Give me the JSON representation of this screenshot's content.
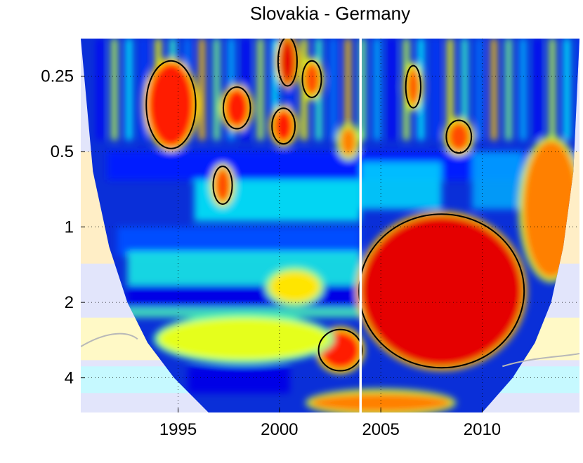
{
  "chart_data": {
    "type": "heatmap",
    "title": "Slovakia - Germany",
    "xlabel": "",
    "ylabel": "",
    "x_ticks": [
      1995,
      2000,
      2005,
      2010
    ],
    "x_tick_labels": [
      "1995",
      "2000",
      "2005",
      "2010"
    ],
    "y_ticks": [
      0.25,
      0.5,
      1,
      2,
      4
    ],
    "y_tick_labels": [
      "0.25",
      "0.5",
      "1",
      "2",
      "4"
    ],
    "y_scale": "log2",
    "y_reversed": true,
    "xlim": [
      1990.2,
      2014.8
    ],
    "ylim": [
      0.177,
      5.5
    ],
    "grid": true,
    "colormap": "jet",
    "event_line_x": 2004.0,
    "cone_of_influence": [
      [
        1990.2,
        0.177
      ],
      [
        1990.8,
        0.6
      ],
      [
        1991.6,
        1.2
      ],
      [
        1992.5,
        2.0
      ],
      [
        1993.5,
        2.9
      ],
      [
        1994.8,
        4.0
      ],
      [
        1996.5,
        5.5
      ],
      [
        2010.0,
        5.5
      ],
      [
        2011.5,
        4.0
      ],
      [
        2012.6,
        2.9
      ],
      [
        2013.4,
        2.0
      ],
      [
        2014.0,
        1.2
      ],
      [
        2014.5,
        0.6
      ],
      [
        2014.8,
        0.177
      ]
    ],
    "high_coherence_regions": [
      {
        "x": [
          2004.0,
          2012.0
        ],
        "y": [
          0.9,
          3.6
        ],
        "level": 0.9
      },
      {
        "x": [
          2002.0,
          2004.0
        ],
        "y": [
          2.6,
          3.7
        ],
        "level": 0.85
      },
      {
        "x": [
          2012.0,
          2014.8
        ],
        "y": [
          0.45,
          1.6
        ],
        "level": 0.75
      },
      {
        "x": [
          1993.5,
          1995.8
        ],
        "y": [
          0.22,
          0.48
        ],
        "level": 0.85
      },
      {
        "x": [
          1997.3,
          1998.5
        ],
        "y": [
          0.28,
          0.4
        ],
        "level": 0.85
      },
      {
        "x": [
          2000.0,
          2000.8
        ],
        "y": [
          0.177,
          0.27
        ],
        "level": 0.9
      },
      {
        "x": [
          1999.7,
          2000.7
        ],
        "y": [
          0.34,
          0.46
        ],
        "level": 0.85
      },
      {
        "x": [
          2001.2,
          2002.0
        ],
        "y": [
          0.22,
          0.3
        ],
        "level": 0.8
      },
      {
        "x": [
          2006.3,
          2006.9
        ],
        "y": [
          0.23,
          0.33
        ],
        "level": 0.8
      },
      {
        "x": [
          1996.8,
          1997.6
        ],
        "y": [
          0.58,
          0.8
        ],
        "level": 0.8
      },
      {
        "x": [
          2003.0,
          2003.8
        ],
        "y": [
          0.4,
          0.52
        ],
        "level": 0.75
      },
      {
        "x": [
          2008.3,
          2009.4
        ],
        "y": [
          0.38,
          0.5
        ],
        "level": 0.8
      },
      {
        "x": [
          2001.5,
          2008.5
        ],
        "y": [
          4.6,
          5.5
        ],
        "level": 0.75
      },
      {
        "x": [
          1994.0,
          2002.5
        ],
        "y": [
          2.3,
          3.4
        ],
        "level": 0.6
      },
      {
        "x": [
          1999.5,
          2002.0
        ],
        "y": [
          1.5,
          2.0
        ],
        "level": 0.65
      }
    ],
    "low_coherence_bands": [
      {
        "x": [
          1992.5,
          2004.0
        ],
        "y": [
          1.7,
          2.1
        ],
        "level": 0.1
      },
      {
        "x": [
          1992.0,
          2004.0
        ],
        "y": [
          1.0,
          1.3
        ],
        "level": 0.2
      },
      {
        "x": [
          1995.5,
          2000.5
        ],
        "y": [
          3.6,
          4.6
        ],
        "level": 0.1
      },
      {
        "x": [
          1991.5,
          2014.8
        ],
        "y": [
          0.5,
          0.65
        ],
        "level": 0.15
      }
    ]
  }
}
